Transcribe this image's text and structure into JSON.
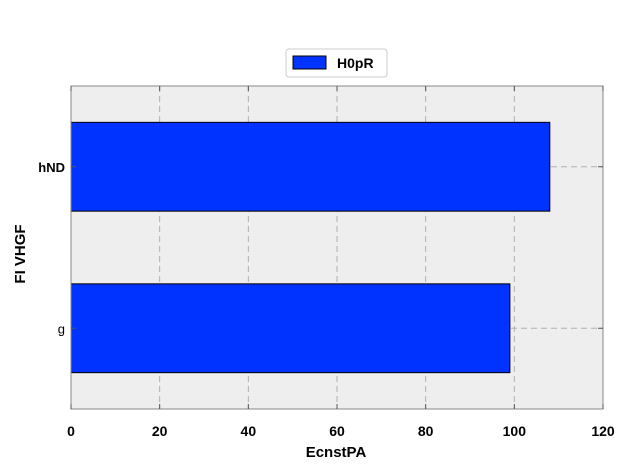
{
  "chart_data": {
    "type": "bar",
    "orientation": "horizontal",
    "categories": [
      "g",
      "hND"
    ],
    "category_label_weight": [
      "normal",
      "bold"
    ],
    "series": [
      {
        "name": "H0pR",
        "values": [
          99,
          108
        ]
      }
    ],
    "xlabel": "EcnstPA",
    "ylabel": "FI VHGF",
    "xlim": [
      0,
      120
    ],
    "xticks": [
      0,
      20,
      40,
      60,
      80,
      100,
      120
    ],
    "xtick_labels": [
      "0",
      "20",
      "40",
      "60",
      "80",
      "100",
      "120"
    ],
    "grid": true,
    "legend_position": "top-center",
    "colors": {
      "bar": "#0033ff",
      "bar_edge": "#000000",
      "plot_background": "#eeeeee",
      "grid": "#b0b0b0"
    }
  }
}
